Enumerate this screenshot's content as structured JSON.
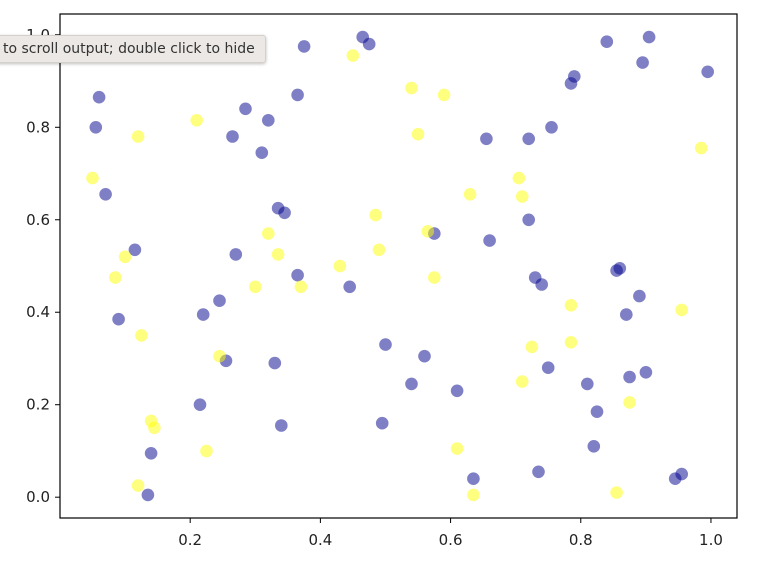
{
  "tooltip": {
    "text": "to scroll output; double click to hide"
  },
  "chart_data": {
    "type": "scatter",
    "xlim": [
      0.0,
      1.04
    ],
    "ylim": [
      -0.045,
      1.045
    ],
    "xticks": [
      "0.2",
      "0.4",
      "0.6",
      "0.8",
      "1.0"
    ],
    "yticks": [
      "0.0",
      "0.2",
      "0.4",
      "0.6",
      "0.8",
      "1.0"
    ],
    "grid": false,
    "marker_alpha": 0.5,
    "series": [
      {
        "color": "#00008b",
        "x": [
          0.465,
          0.475,
          0.375,
          0.06,
          0.055,
          0.285,
          0.265,
          0.32,
          0.31,
          0.365,
          0.07,
          0.335,
          0.345,
          0.27,
          0.115,
          0.09,
          0.22,
          0.245,
          0.255,
          0.33,
          0.365,
          0.445,
          0.5,
          0.56,
          0.54,
          0.575,
          0.66,
          0.655,
          0.72,
          0.72,
          0.755,
          0.785,
          0.79,
          0.84,
          0.895,
          0.905,
          0.995,
          0.73,
          0.74,
          0.855,
          0.86,
          0.89,
          0.87,
          0.75,
          0.875,
          0.9,
          0.81,
          0.825,
          0.215,
          0.14,
          0.135,
          0.34,
          0.495,
          0.61,
          0.635,
          0.735,
          0.82,
          0.945,
          0.955
        ],
        "y": [
          0.995,
          0.98,
          0.975,
          0.865,
          0.8,
          0.84,
          0.78,
          0.815,
          0.745,
          0.87,
          0.655,
          0.625,
          0.615,
          0.525,
          0.535,
          0.385,
          0.395,
          0.425,
          0.295,
          0.29,
          0.48,
          0.455,
          0.33,
          0.305,
          0.245,
          0.57,
          0.555,
          0.775,
          0.775,
          0.6,
          0.8,
          0.895,
          0.91,
          0.985,
          0.94,
          0.995,
          0.92,
          0.475,
          0.46,
          0.49,
          0.495,
          0.435,
          0.395,
          0.28,
          0.26,
          0.27,
          0.245,
          0.185,
          0.2,
          0.095,
          0.005,
          0.155,
          0.16,
          0.23,
          0.04,
          0.055,
          0.11,
          0.04,
          0.05
        ]
      },
      {
        "color": "#ffff00",
        "x": [
          0.45,
          0.54,
          0.59,
          0.55,
          0.21,
          0.12,
          0.05,
          0.1,
          0.085,
          0.125,
          0.32,
          0.335,
          0.3,
          0.37,
          0.43,
          0.485,
          0.49,
          0.565,
          0.575,
          0.63,
          0.705,
          0.71,
          0.785,
          0.785,
          0.725,
          0.71,
          0.245,
          0.225,
          0.14,
          0.145,
          0.12,
          0.61,
          0.635,
          0.855,
          0.875,
          0.955,
          0.985
        ],
        "y": [
          0.955,
          0.885,
          0.87,
          0.785,
          0.815,
          0.78,
          0.69,
          0.52,
          0.475,
          0.35,
          0.57,
          0.525,
          0.455,
          0.455,
          0.5,
          0.61,
          0.535,
          0.575,
          0.475,
          0.655,
          0.69,
          0.65,
          0.415,
          0.335,
          0.325,
          0.25,
          0.305,
          0.1,
          0.165,
          0.15,
          0.025,
          0.105,
          0.005,
          0.01,
          0.205,
          0.405,
          0.755
        ]
      }
    ]
  }
}
